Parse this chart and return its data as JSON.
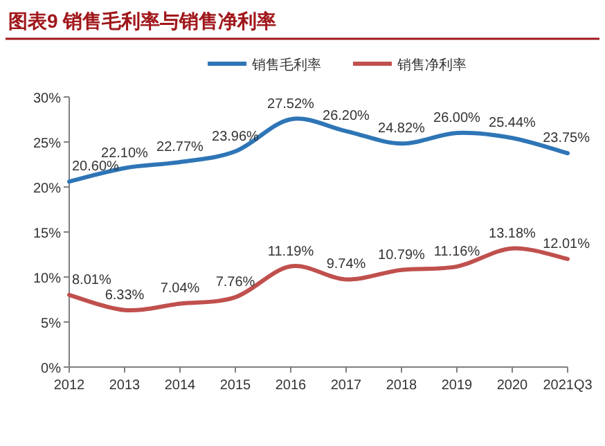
{
  "chart_data": {
    "type": "line",
    "title": "图表9 销售毛利率与销售净利率",
    "categories": [
      "2012",
      "2013",
      "2014",
      "2015",
      "2016",
      "2017",
      "2018",
      "2019",
      "2020",
      "2021Q3"
    ],
    "series": [
      {
        "name": "销售毛利率",
        "color": "#2e75b6",
        "values": [
          20.6,
          22.1,
          22.77,
          23.96,
          27.52,
          26.2,
          24.82,
          26.0,
          25.44,
          23.75
        ],
        "value_labels": [
          "20.60%",
          "22.10%",
          "22.77%",
          "23.96%",
          "27.52%",
          "26.20%",
          "24.82%",
          "26.00%",
          "25.44%",
          "23.75%"
        ]
      },
      {
        "name": "销售净利率",
        "color": "#c0504d",
        "values": [
          8.01,
          6.33,
          7.04,
          7.76,
          11.19,
          9.74,
          10.79,
          11.16,
          13.18,
          12.01
        ],
        "value_labels": [
          "8.01%",
          "6.33%",
          "7.04%",
          "7.76%",
          "11.19%",
          "9.74%",
          "10.79%",
          "11.16%",
          "13.18%",
          "12.01%"
        ]
      }
    ],
    "ylim": [
      0,
      30
    ],
    "yticks": [
      {
        "value": 0,
        "label": "0%"
      },
      {
        "value": 5,
        "label": "5%"
      },
      {
        "value": 10,
        "label": "10%"
      },
      {
        "value": 15,
        "label": "15%"
      },
      {
        "value": 20,
        "label": "20%"
      },
      {
        "value": 25,
        "label": "25%"
      },
      {
        "value": 30,
        "label": "30%"
      }
    ],
    "legend": "top",
    "grid": false,
    "marker": "none",
    "line_style": "solid"
  }
}
